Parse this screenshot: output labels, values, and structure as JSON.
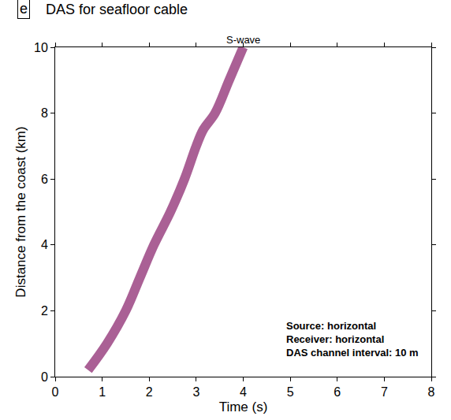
{
  "chart_data": {
    "type": "line",
    "panel_label": "e",
    "title": "DAS for seafloor cable",
    "annotation": "S-wave",
    "info_text": [
      "Source: horizontal",
      "Receiver: horizontal",
      "DAS channel interval: 10 m"
    ],
    "x_label": "Time (s)",
    "y_label": "Distance from the coast (km)",
    "x": [
      0.7,
      1.1,
      1.5,
      1.8,
      2.1,
      2.45,
      2.75,
      3.0,
      3.15,
      3.4,
      3.7,
      4.0
    ],
    "values": [
      0.2,
      1,
      2,
      3,
      4,
      5,
      6,
      7,
      7.5,
      8,
      9,
      10
    ],
    "color": "#8e2c72",
    "line_style": "solid",
    "xlim": [
      0,
      8
    ],
    "xticks": [
      0,
      1,
      2,
      3,
      4,
      5,
      6,
      7,
      8
    ],
    "ylim": [
      0,
      10
    ],
    "yticks": [
      0,
      2,
      4,
      6,
      8,
      10
    ],
    "grid": false
  }
}
